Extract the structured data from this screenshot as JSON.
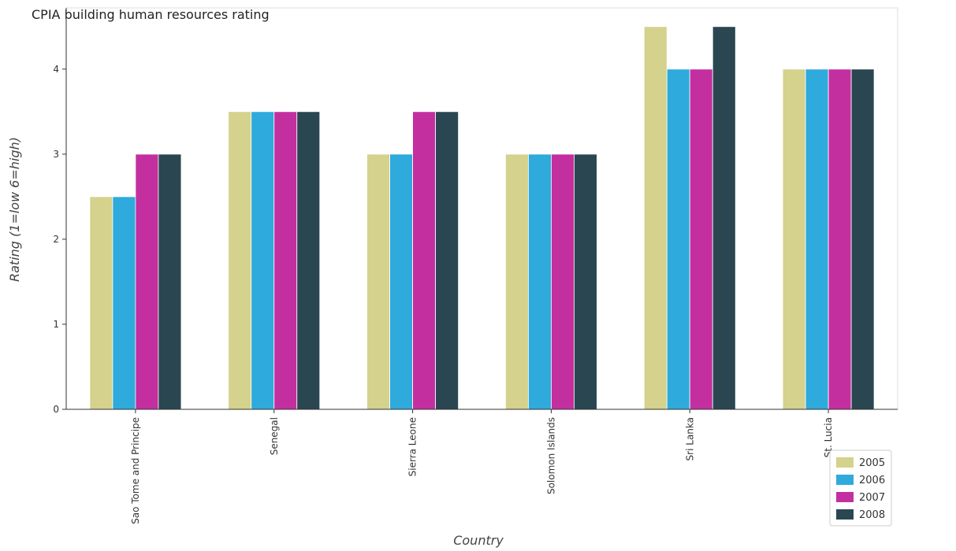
{
  "chart_data": {
    "type": "bar",
    "title": "CPIA building human resources rating",
    "xlabel": "Country",
    "ylabel": "Rating (1=low 6=high)",
    "ylim": [
      0,
      4.72
    ],
    "yticks": [
      0,
      1,
      2,
      3,
      4
    ],
    "categories": [
      "Sao Tome and Principe",
      "Senegal",
      "Sierra Leone",
      "Solomon Islands",
      "Sri Lanka",
      "St. Lucia"
    ],
    "series": [
      {
        "name": "2005",
        "color": "#d4d28c",
        "values": [
          2.5,
          3.5,
          3.0,
          3.0,
          4.5,
          4.0
        ]
      },
      {
        "name": "2006",
        "color": "#2eaadc",
        "values": [
          2.5,
          3.5,
          3.0,
          3.0,
          4.0,
          4.0
        ]
      },
      {
        "name": "2007",
        "color": "#c42fa0",
        "values": [
          3.0,
          3.5,
          3.5,
          3.0,
          4.0,
          4.0
        ]
      },
      {
        "name": "2008",
        "color": "#2a4651",
        "values": [
          3.0,
          3.5,
          3.5,
          3.0,
          4.5,
          4.0
        ]
      }
    ],
    "legend_position": "bottom-right",
    "grid": false
  }
}
